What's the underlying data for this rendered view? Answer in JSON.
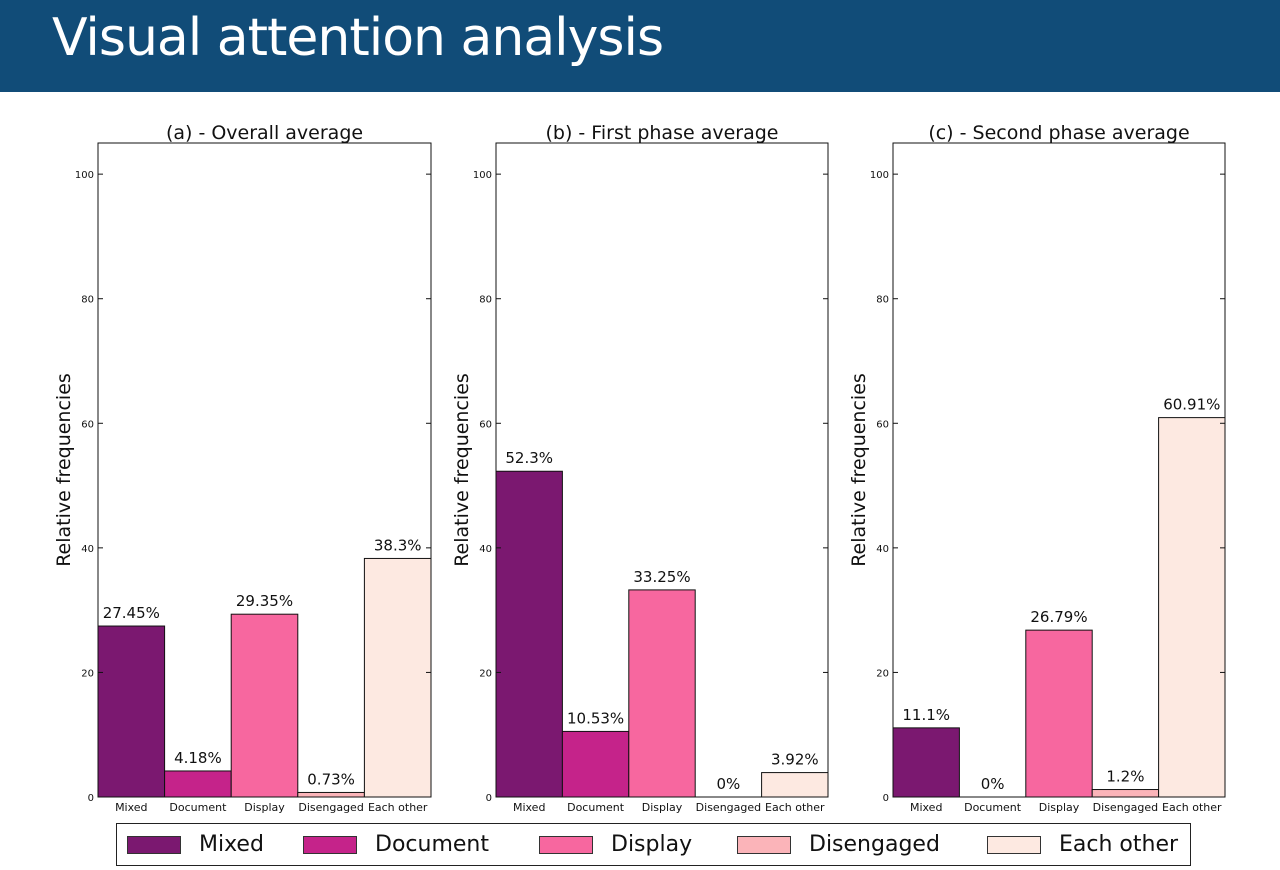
{
  "header": {
    "title": "Visual attention analysis"
  },
  "colors": {
    "header_bg": "#114c78",
    "Mixed": "#7b1870",
    "Document": "#c5238a",
    "Display": "#f7679f",
    "Disengaged": "#fbb4b9",
    "Each other": "#fde9e1"
  },
  "legend": {
    "items": [
      "Mixed",
      "Document",
      "Display",
      "Disengaged",
      "Each other"
    ]
  },
  "chart_data": [
    {
      "type": "bar",
      "title": "(a) - Overall average",
      "ylabel": "Relative frequencies",
      "xlabel": "",
      "ylim": [
        0,
        105
      ],
      "yticks": [
        0,
        20,
        40,
        60,
        80,
        100
      ],
      "categories": [
        "Mixed",
        "Document",
        "Display",
        "Disengaged",
        "Each other"
      ],
      "values": [
        27.45,
        4.18,
        29.35,
        0.73,
        38.3
      ],
      "labels": [
        "27.45%",
        "4.18%",
        "29.35%",
        "0.73%",
        "38.3%"
      ]
    },
    {
      "type": "bar",
      "title": "(b) - First phase average",
      "ylabel": "Relative frequencies",
      "xlabel": "",
      "ylim": [
        0,
        105
      ],
      "yticks": [
        0,
        20,
        40,
        60,
        80,
        100
      ],
      "categories": [
        "Mixed",
        "Document",
        "Display",
        "Disengaged",
        "Each other"
      ],
      "values": [
        52.3,
        10.53,
        33.25,
        0,
        3.92
      ],
      "labels": [
        "52.3%",
        "10.53%",
        "33.25%",
        "0%",
        "3.92%"
      ]
    },
    {
      "type": "bar",
      "title": "(c) - Second phase average",
      "ylabel": "Relative frequencies",
      "xlabel": "",
      "ylim": [
        0,
        105
      ],
      "yticks": [
        0,
        20,
        40,
        60,
        80,
        100
      ],
      "categories": [
        "Mixed",
        "Document",
        "Display",
        "Disengaged",
        "Each other"
      ],
      "values": [
        11.1,
        0,
        26.79,
        1.2,
        60.91
      ],
      "labels": [
        "11.1%",
        "0%",
        "26.79%",
        "1.2%",
        "60.91%"
      ]
    }
  ]
}
